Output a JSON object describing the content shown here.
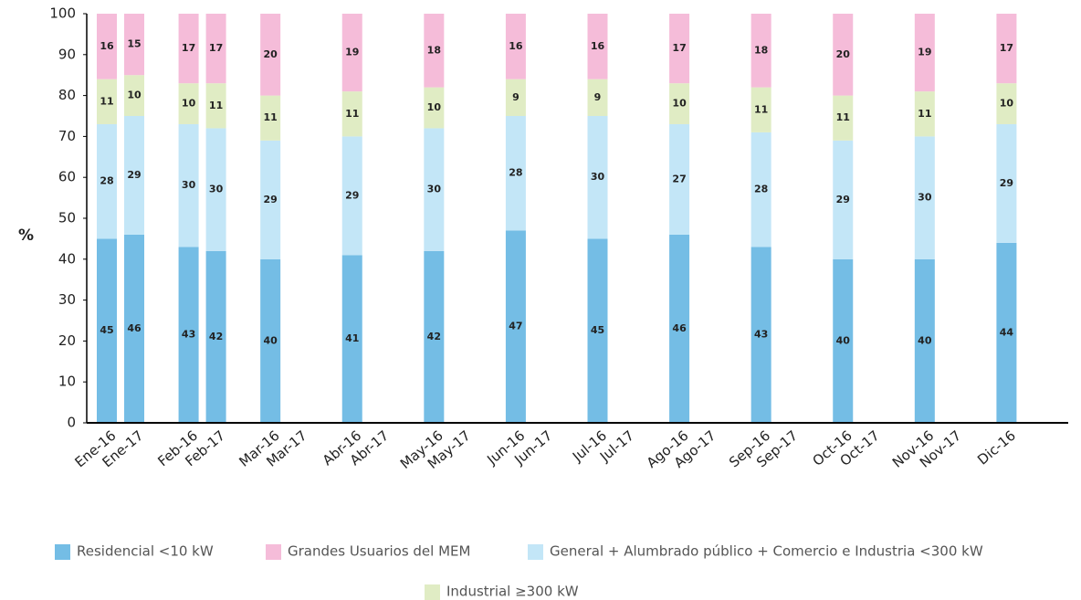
{
  "chart_data": {
    "type": "stacked_bar",
    "y_label": "%",
    "categories": [
      "Ene-16",
      "Ene-17",
      "Feb-16",
      "Feb-17",
      "Mar-16",
      "Mar-17",
      "Abr-16",
      "Abr-17",
      "May-16",
      "May-17",
      "Jun-16",
      "Jun-17",
      "Jul-16",
      "Jul-17",
      "Ago-16",
      "Ago-17",
      "Sep-16",
      "Sep-17",
      "Oct-16",
      "Oct-17",
      "Nov-16",
      "Nov-17",
      "Dic-16"
    ],
    "series": [
      {
        "name": "Residencial <10 kW",
        "color": "#74bde5",
        "values": [
          45,
          46,
          43,
          42,
          40,
          null,
          41,
          null,
          42,
          null,
          47,
          null,
          45,
          null,
          46,
          null,
          43,
          null,
          40,
          null,
          40,
          null,
          44
        ]
      },
      {
        "name": "General + Alumbrado público + Comercio e Industria <300 kW",
        "color": "#c3e6f7",
        "values": [
          28,
          29,
          30,
          30,
          29,
          null,
          29,
          null,
          30,
          null,
          28,
          null,
          30,
          null,
          27,
          null,
          28,
          null,
          29,
          null,
          30,
          null,
          29
        ]
      },
      {
        "name": "Industrial ≥300 kW",
        "color": "#e0ecc4",
        "values": [
          11,
          10,
          10,
          11,
          11,
          null,
          11,
          null,
          10,
          null,
          9,
          null,
          9,
          null,
          10,
          null,
          11,
          null,
          11,
          null,
          11,
          null,
          10
        ]
      },
      {
        "name": "Grandes Usuarios del MEM",
        "color": "#f5bcd9",
        "values": [
          16,
          15,
          17,
          17,
          20,
          null,
          19,
          null,
          18,
          null,
          16,
          null,
          16,
          null,
          17,
          null,
          18,
          null,
          20,
          null,
          19,
          null,
          17
        ]
      }
    ],
    "ylim": [
      0,
      100
    ],
    "yticks": [
      0,
      10,
      20,
      30,
      40,
      50,
      60,
      70,
      80,
      90,
      100
    ],
    "grid": false
  }
}
